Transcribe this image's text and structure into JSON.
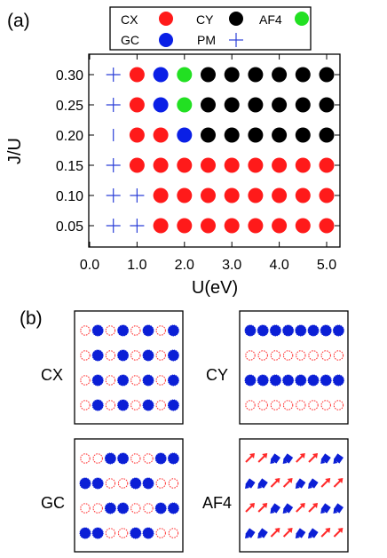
{
  "panel_a_label": "(a)",
  "panel_b_label": "(b)",
  "colors": {
    "CX": "#ff1a1a",
    "CY": "#000000",
    "AF4": "#22e022",
    "GC": "#0a1fe6",
    "PM": "#2b3fd8",
    "pattern_red": "#ff2a2a",
    "pattern_blue": "#0b1fd6"
  },
  "chart_data": {
    "type": "scatter",
    "title": "",
    "xlabel": "U(eV)",
    "ylabel": "J/U",
    "xlim": [
      0.0,
      5.5
    ],
    "ylim": [
      0.03,
      0.32
    ],
    "xticks": [
      "0.0",
      "1.0",
      "2.0",
      "3.0",
      "4.0",
      "5.0"
    ],
    "xtick_values": [
      0.0,
      1.0,
      2.0,
      3.0,
      4.0,
      5.0
    ],
    "yticks": [
      "0.05",
      "0.10",
      "0.15",
      "0.20",
      "0.25",
      "0.30"
    ],
    "ytick_values": [
      0.05,
      0.1,
      0.15,
      0.2,
      0.25,
      0.3
    ],
    "legend_position": "top",
    "legend": [
      {
        "name": "CX",
        "marker": "circle"
      },
      {
        "name": "CY",
        "marker": "circle"
      },
      {
        "name": "AF4",
        "marker": "circle"
      },
      {
        "name": "GC",
        "marker": "circle"
      },
      {
        "name": "PM",
        "marker": "plus"
      }
    ],
    "series": [
      {
        "name": "PM",
        "points": [
          [
            0.5,
            0.05
          ],
          [
            1.0,
            0.05
          ],
          [
            0.5,
            0.1
          ],
          [
            1.0,
            0.1
          ],
          [
            0.5,
            0.15
          ],
          [
            0.5,
            0.25
          ],
          [
            0.5,
            0.3
          ]
        ]
      },
      {
        "name": "PM_vertical",
        "points": [
          [
            0.5,
            0.2
          ]
        ]
      },
      {
        "name": "CX",
        "points": [
          [
            1.5,
            0.05
          ],
          [
            2.0,
            0.05
          ],
          [
            2.5,
            0.05
          ],
          [
            3.0,
            0.05
          ],
          [
            3.5,
            0.05
          ],
          [
            4.0,
            0.05
          ],
          [
            4.5,
            0.05
          ],
          [
            5.0,
            0.05
          ],
          [
            1.5,
            0.1
          ],
          [
            2.0,
            0.1
          ],
          [
            2.5,
            0.1
          ],
          [
            3.0,
            0.1
          ],
          [
            3.5,
            0.1
          ],
          [
            4.0,
            0.1
          ],
          [
            4.5,
            0.1
          ],
          [
            5.0,
            0.1
          ],
          [
            1.0,
            0.15
          ],
          [
            1.5,
            0.15
          ],
          [
            2.0,
            0.15
          ],
          [
            2.5,
            0.15
          ],
          [
            3.0,
            0.15
          ],
          [
            3.5,
            0.15
          ],
          [
            4.0,
            0.15
          ],
          [
            4.5,
            0.15
          ],
          [
            5.0,
            0.15
          ],
          [
            1.0,
            0.2
          ],
          [
            1.5,
            0.2
          ],
          [
            1.0,
            0.25
          ],
          [
            1.0,
            0.3
          ]
        ]
      },
      {
        "name": "GC",
        "points": [
          [
            2.0,
            0.2
          ],
          [
            1.5,
            0.25
          ],
          [
            1.5,
            0.3
          ]
        ]
      },
      {
        "name": "AF4",
        "points": [
          [
            2.0,
            0.25
          ],
          [
            2.0,
            0.3
          ]
        ]
      },
      {
        "name": "CY",
        "points": [
          [
            2.5,
            0.2
          ],
          [
            3.0,
            0.2
          ],
          [
            3.5,
            0.2
          ],
          [
            4.0,
            0.2
          ],
          [
            4.5,
            0.2
          ],
          [
            5.0,
            0.2
          ],
          [
            2.5,
            0.25
          ],
          [
            3.0,
            0.25
          ],
          [
            3.5,
            0.25
          ],
          [
            4.0,
            0.25
          ],
          [
            4.5,
            0.25
          ],
          [
            5.0,
            0.25
          ],
          [
            2.5,
            0.3
          ],
          [
            3.0,
            0.3
          ],
          [
            3.5,
            0.3
          ],
          [
            4.0,
            0.3
          ],
          [
            4.5,
            0.3
          ],
          [
            5.0,
            0.3
          ]
        ]
      }
    ]
  },
  "patterns": [
    {
      "label": "CX",
      "rows": [
        [
          "R",
          "B",
          "R",
          "B",
          "R",
          "B",
          "R",
          "B"
        ],
        [
          "R",
          "B",
          "R",
          "B",
          "R",
          "B",
          "R",
          "B"
        ],
        [
          "R",
          "B",
          "R",
          "B",
          "R",
          "B",
          "R",
          "B"
        ],
        [
          "R",
          "B",
          "R",
          "B",
          "R",
          "B",
          "R",
          "B"
        ]
      ]
    },
    {
      "label": "CY",
      "rows": [
        [
          "B",
          "B",
          "B",
          "B",
          "B",
          "B",
          "B",
          "B"
        ],
        [
          "R",
          "R",
          "R",
          "R",
          "R",
          "R",
          "R",
          "R"
        ],
        [
          "B",
          "B",
          "B",
          "B",
          "B",
          "B",
          "B",
          "B"
        ],
        [
          "R",
          "R",
          "R",
          "R",
          "R",
          "R",
          "R",
          "R"
        ]
      ]
    },
    {
      "label": "GC",
      "rows": [
        [
          "R",
          "R",
          "B",
          "B",
          "R",
          "R",
          "B",
          "B"
        ],
        [
          "B",
          "B",
          "R",
          "R",
          "B",
          "B",
          "R",
          "R"
        ],
        [
          "R",
          "R",
          "B",
          "B",
          "R",
          "R",
          "B",
          "B"
        ],
        [
          "B",
          "B",
          "R",
          "R",
          "B",
          "B",
          "R",
          "R"
        ]
      ]
    },
    {
      "label": "AF4",
      "rows": [
        [
          "R",
          "R",
          "B",
          "B",
          "R",
          "R",
          "B",
          "B"
        ],
        [
          "B",
          "B",
          "R",
          "R",
          "B",
          "B",
          "R",
          "R"
        ],
        [
          "R",
          "R",
          "B",
          "B",
          "R",
          "R",
          "B",
          "B"
        ],
        [
          "B",
          "B",
          "R",
          "R",
          "B",
          "B",
          "R",
          "R"
        ]
      ]
    }
  ]
}
